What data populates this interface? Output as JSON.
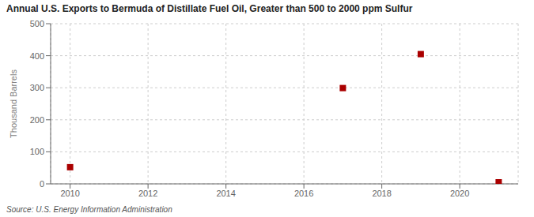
{
  "chart_data": {
    "type": "scatter",
    "title": "Annual U.S. Exports to Bermuda of Distillate Fuel Oil, Greater than 500 to 2000 ppm Sulfur",
    "y_label": "Thousand Barrels",
    "source": "Source: U.S. Energy Information Administration",
    "x": [
      2010,
      2017,
      2019,
      2021
    ],
    "values": [
      52,
      299,
      405,
      5
    ],
    "xlim": [
      2009.5,
      2021.5
    ],
    "ylim": [
      0,
      500
    ],
    "xticks": [
      2010,
      2012,
      2014,
      2016,
      2018,
      2020
    ],
    "yticks": [
      0,
      100,
      200,
      300,
      400,
      500
    ],
    "color": "#aa0000",
    "marker": "square",
    "grid": true
  }
}
